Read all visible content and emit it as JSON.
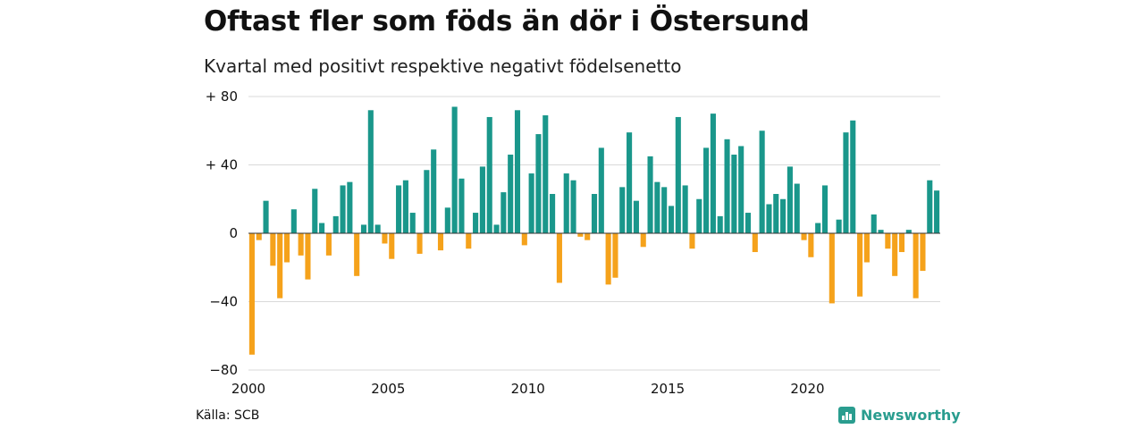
{
  "title": "Oftast fler som föds än dör i Östersund",
  "subtitle": "Kvartal med positivt respektive negativt födelsenetto",
  "source": "Källa: SCB",
  "brand": "Newsworthy",
  "colors": {
    "positive": "#1a978b",
    "negative": "#f5a21b",
    "grid": "#d9d9d9",
    "brand": "#2a9d8f"
  },
  "chart_data": {
    "type": "bar",
    "x_ticks": [
      "2000",
      "2005",
      "2010",
      "2015",
      "2020"
    ],
    "y_ticks": [
      "+ 80",
      "+ 40",
      "0",
      "−40",
      "−80"
    ],
    "ylim": [
      -80,
      80
    ],
    "grid": true,
    "start_year": 2000,
    "periods_per_year": 4,
    "values": [
      -71,
      -4,
      19,
      -19,
      -38,
      -17,
      14,
      -13,
      -27,
      26,
      6,
      -13,
      10,
      28,
      30,
      -25,
      5,
      72,
      5,
      -6,
      -15,
      28,
      31,
      12,
      -12,
      37,
      49,
      -10,
      15,
      74,
      32,
      -9,
      12,
      39,
      68,
      5,
      24,
      46,
      72,
      -7,
      35,
      58,
      69,
      23,
      -29,
      35,
      31,
      -2,
      -4,
      23,
      50,
      -30,
      -26,
      27,
      59,
      19,
      -8,
      45,
      30,
      27,
      16,
      68,
      28,
      -9,
      20,
      50,
      70,
      10,
      55,
      46,
      51,
      12,
      -11,
      60,
      17,
      23,
      20,
      39,
      29,
      -4,
      -14,
      6,
      28,
      -41,
      8,
      59,
      66,
      -37,
      -17,
      11,
      2,
      -9,
      -25,
      -11,
      2,
      -38,
      -22,
      31,
      25
    ]
  }
}
